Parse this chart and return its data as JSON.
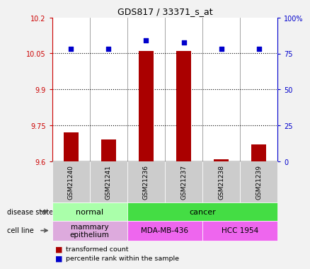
{
  "title": "GDS817 / 33371_s_at",
  "samples": [
    "GSM21240",
    "GSM21241",
    "GSM21236",
    "GSM21237",
    "GSM21238",
    "GSM21239"
  ],
  "red_values": [
    9.72,
    9.69,
    10.06,
    10.06,
    9.61,
    9.67
  ],
  "blue_values": [
    10.07,
    10.07,
    10.105,
    10.095,
    10.07,
    10.07
  ],
  "ylim_left": [
    9.6,
    10.2
  ],
  "ylim_right": [
    0,
    100
  ],
  "yticks_left": [
    9.6,
    9.75,
    9.9,
    10.05,
    10.2
  ],
  "ytick_labels_left": [
    "9.6",
    "9.75",
    "9.9",
    "10.05",
    "10.2"
  ],
  "yticks_right": [
    0,
    25,
    50,
    75,
    100
  ],
  "ytick_labels_right": [
    "0",
    "25",
    "50",
    "75",
    "100%"
  ],
  "hlines": [
    10.05,
    9.9,
    9.75
  ],
  "disease_groups": [
    {
      "label": "normal",
      "cols": [
        0,
        1
      ],
      "color": "#aaffaa"
    },
    {
      "label": "cancer",
      "cols": [
        2,
        3,
        4,
        5
      ],
      "color": "#44dd44"
    }
  ],
  "cell_line_groups": [
    {
      "label": "mammary\nepithelium",
      "cols": [
        0,
        1
      ],
      "color": "#ddaadd"
    },
    {
      "label": "MDA-MB-436",
      "cols": [
        2,
        3
      ],
      "color": "#ee66ee"
    },
    {
      "label": "HCC 1954",
      "cols": [
        4,
        5
      ],
      "color": "#ee66ee"
    }
  ],
  "bar_color": "#aa0000",
  "dot_color": "#0000cc",
  "axis_color_left": "#cc0000",
  "axis_color_right": "#0000cc",
  "bg_color": "#f2f2f2",
  "plot_bg": "#ffffff",
  "sample_box_color": "#cccccc",
  "legend_red": "transformed count",
  "legend_blue": "percentile rank within the sample",
  "bar_width": 0.4,
  "dot_size": 22
}
